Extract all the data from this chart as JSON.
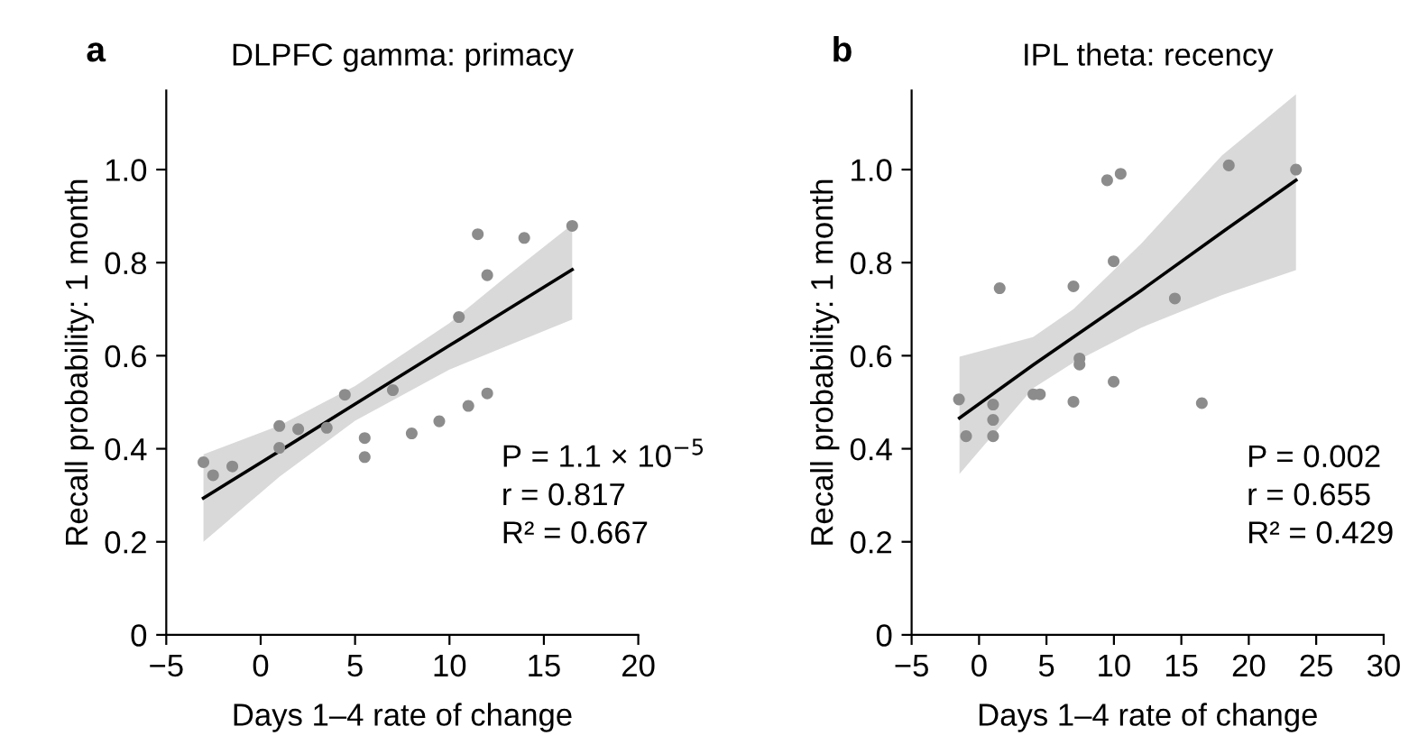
{
  "chart_data": [
    {
      "type": "scatter",
      "title": "DLPFC gamma: primacy",
      "xlabel": "Days 1–4 rate of change",
      "ylabel": "Recall probability: 1 month",
      "xlim": [
        -5,
        20
      ],
      "ylim": [
        0,
        1.17
      ],
      "xticks": [
        {
          "value": -5,
          "label": "−5"
        },
        0,
        5,
        10,
        15,
        20
      ],
      "yticks": [
        0,
        0.2,
        0.4,
        0.6,
        0.8,
        {
          "value": 1,
          "label": "1.0"
        }
      ],
      "grid": false,
      "legend": false,
      "annotations": [
        "a",
        "P = 1.1 × 10$^{−5}$",
        "r = 0.817",
        "R² = 0.667"
      ],
      "series": [
        {
          "marker": "circle",
          "color": "#8c8c8c",
          "x": [
            -3.03,
            -2.52,
            -1.5,
            0.99,
            0.99,
            1.99,
            3.5,
            4.46,
            5.51,
            5.51,
            7.0,
            8.0,
            9.46,
            10.5,
            11.0,
            11.5,
            12.0,
            12.0,
            13.96,
            16.5
          ],
          "values": [
            0.371,
            0.343,
            0.362,
            0.449,
            0.402,
            0.442,
            0.445,
            0.516,
            0.423,
            0.382,
            0.526,
            0.433,
            0.459,
            0.683,
            0.492,
            0.861,
            0.773,
            0.519,
            0.853,
            0.879
          ]
        },
        {
          "type": "line",
          "color": "#000000",
          "x": [
            -3.03,
            1,
            5,
            10,
            13,
            16.5
          ],
          "values": [
            0.294,
            0.395,
            0.496,
            0.622,
            0.697,
            0.785
          ],
          "lower": [
            0.2,
            0.34,
            0.46,
            0.57,
            0.62,
            0.678
          ],
          "upper": [
            0.388,
            0.45,
            0.535,
            0.67,
            0.77,
            0.882
          ]
        }
      ]
    },
    {
      "type": "scatter",
      "title": "IPL theta: recency",
      "xlabel": "Days 1–4 rate of change",
      "ylabel": "Recall probability: 1 month",
      "xlim": [
        -5,
        30
      ],
      "ylim": [
        0,
        1.17
      ],
      "xticks": [
        {
          "value": -5,
          "label": "−5"
        },
        0,
        5,
        10,
        15,
        20,
        25,
        30
      ],
      "yticks": [
        0,
        0.2,
        0.4,
        0.6,
        0.8,
        {
          "value": 1,
          "label": "1.0"
        }
      ],
      "grid": false,
      "legend": false,
      "annotations": [
        "b",
        "P = 0.002",
        "r = 0.655",
        "R² = 0.429"
      ],
      "series": [
        {
          "marker": "circle",
          "color": "#8c8c8c",
          "x": [
            -1.49,
            -0.96,
            1.04,
            1.04,
            1.04,
            1.53,
            4.03,
            4.51,
            7.0,
            7.0,
            7.45,
            7.45,
            9.5,
            9.98,
            9.98,
            10.5,
            14.52,
            16.52,
            18.52,
            23.5
          ],
          "values": [
            0.506,
            0.427,
            0.495,
            0.462,
            0.427,
            0.745,
            0.517,
            0.517,
            0.749,
            0.501,
            0.594,
            0.581,
            0.977,
            0.803,
            0.544,
            0.991,
            0.723,
            0.498,
            1.009,
            1.0
          ]
        },
        {
          "type": "line",
          "color": "#000000",
          "x": [
            -1.45,
            4,
            7,
            12,
            18,
            23.5
          ],
          "values": [
            0.466,
            0.58,
            0.64,
            0.74,
            0.865,
            0.977
          ],
          "lower": [
            0.346,
            0.53,
            0.585,
            0.66,
            0.73,
            0.784
          ],
          "upper": [
            0.598,
            0.64,
            0.7,
            0.84,
            1.03,
            1.162
          ]
        }
      ]
    }
  ]
}
